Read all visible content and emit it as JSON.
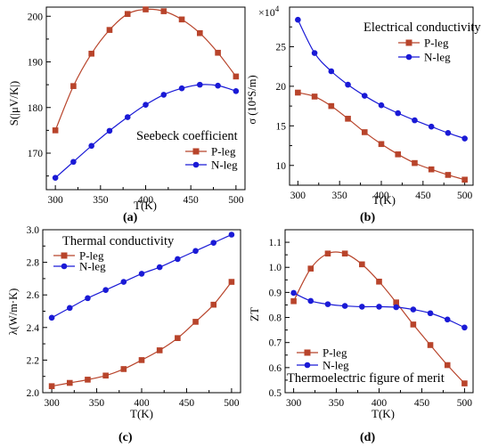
{
  "chart_data": [
    {
      "panel": "(a)",
      "type": "line",
      "annotation": "Seebeck coefficient",
      "xlabel": "T(K)",
      "ylabel": "S(|μV/K|)",
      "xlim": [
        290,
        510
      ],
      "ylim": [
        162,
        202
      ],
      "xticks": [
        "300",
        "350",
        "400",
        "450",
        "500"
      ],
      "yticks": [
        "170",
        "180",
        "190",
        "200"
      ],
      "legend_position": "bottom-right",
      "x": [
        300,
        320,
        340,
        360,
        380,
        400,
        420,
        440,
        460,
        480,
        500
      ],
      "series": [
        {
          "name": "P-leg",
          "color": "#b8442b",
          "marker": "square",
          "values": [
            175.0,
            184.7,
            191.8,
            197.0,
            200.5,
            201.5,
            201.1,
            199.3,
            196.3,
            192.0,
            186.8
          ]
        },
        {
          "name": "N-leg",
          "color": "#1a1ad6",
          "marker": "circle",
          "values": [
            164.6,
            168.1,
            171.6,
            174.9,
            177.9,
            180.6,
            182.8,
            184.2,
            185.0,
            184.8,
            183.6
          ]
        }
      ]
    },
    {
      "panel": "(b)",
      "type": "line",
      "annotation": "Electrical conductivity",
      "xlabel": "T(K)",
      "ylabel": "σ (10⁴S/m)",
      "scale_label": "×10",
      "scale_exp": "4",
      "xlim": [
        290,
        510
      ],
      "ylim": [
        7.5,
        30
      ],
      "xticks": [
        "300",
        "350",
        "400",
        "450",
        "500"
      ],
      "yticks": [
        "10",
        "15",
        "20",
        "25"
      ],
      "legend_position": "top-right",
      "x": [
        300,
        320,
        340,
        360,
        380,
        400,
        420,
        440,
        460,
        480,
        500
      ],
      "series": [
        {
          "name": "P-leg",
          "color": "#b8442b",
          "marker": "square",
          "values": [
            19.2,
            18.7,
            17.5,
            15.9,
            14.2,
            12.7,
            11.4,
            10.3,
            9.5,
            8.8,
            8.2
          ]
        },
        {
          "name": "N-leg",
          "color": "#1a1ad6",
          "marker": "circle",
          "values": [
            28.4,
            24.2,
            21.9,
            20.2,
            18.8,
            17.6,
            16.6,
            15.7,
            14.9,
            14.1,
            13.4
          ]
        }
      ]
    },
    {
      "panel": "(c)",
      "type": "line",
      "annotation": "Thermal conductivity",
      "xlabel": "T(K)",
      "ylabel": "λ(W/m·K)",
      "xlim": [
        290,
        510
      ],
      "ylim": [
        2.0,
        3.0
      ],
      "xticks": [
        "300",
        "350",
        "400",
        "450",
        "500"
      ],
      "yticks": [
        "2.0",
        "2.2",
        "2.4",
        "2.6",
        "2.8",
        "3.0"
      ],
      "legend_position": "top-left",
      "x": [
        300,
        320,
        340,
        360,
        380,
        400,
        420,
        440,
        460,
        480,
        500
      ],
      "series": [
        {
          "name": "P-leg",
          "color": "#b8442b",
          "marker": "square",
          "values": [
            2.04,
            2.06,
            2.08,
            2.105,
            2.145,
            2.2,
            2.26,
            2.335,
            2.435,
            2.54,
            2.68
          ]
        },
        {
          "name": "N-leg",
          "color": "#1a1ad6",
          "marker": "circle",
          "values": [
            2.46,
            2.52,
            2.58,
            2.63,
            2.68,
            2.73,
            2.77,
            2.82,
            2.87,
            2.92,
            2.97
          ]
        }
      ]
    },
    {
      "panel": "(d)",
      "type": "line",
      "annotation": "Thermoelectric figure of merit",
      "xlabel": "T(K)",
      "ylabel": "ZT",
      "xlim": [
        290,
        510
      ],
      "ylim": [
        0.5,
        1.15
      ],
      "xticks": [
        "300",
        "350",
        "400",
        "450",
        "500"
      ],
      "yticks": [
        "0.5",
        "0.6",
        "0.7",
        "0.8",
        "0.9",
        "1.0",
        "1.1"
      ],
      "legend_position": "bottom-left",
      "x": [
        300,
        320,
        340,
        360,
        380,
        400,
        420,
        440,
        460,
        480,
        500
      ],
      "series": [
        {
          "name": "P-leg",
          "color": "#b8442b",
          "marker": "square",
          "values": [
            0.865,
            0.995,
            1.055,
            1.055,
            1.012,
            0.943,
            0.86,
            0.772,
            0.69,
            0.61,
            0.537
          ]
        },
        {
          "name": "N-leg",
          "color": "#1a1ad6",
          "marker": "circle",
          "values": [
            0.898,
            0.866,
            0.853,
            0.846,
            0.843,
            0.843,
            0.841,
            0.832,
            0.817,
            0.792,
            0.76
          ]
        }
      ]
    }
  ]
}
